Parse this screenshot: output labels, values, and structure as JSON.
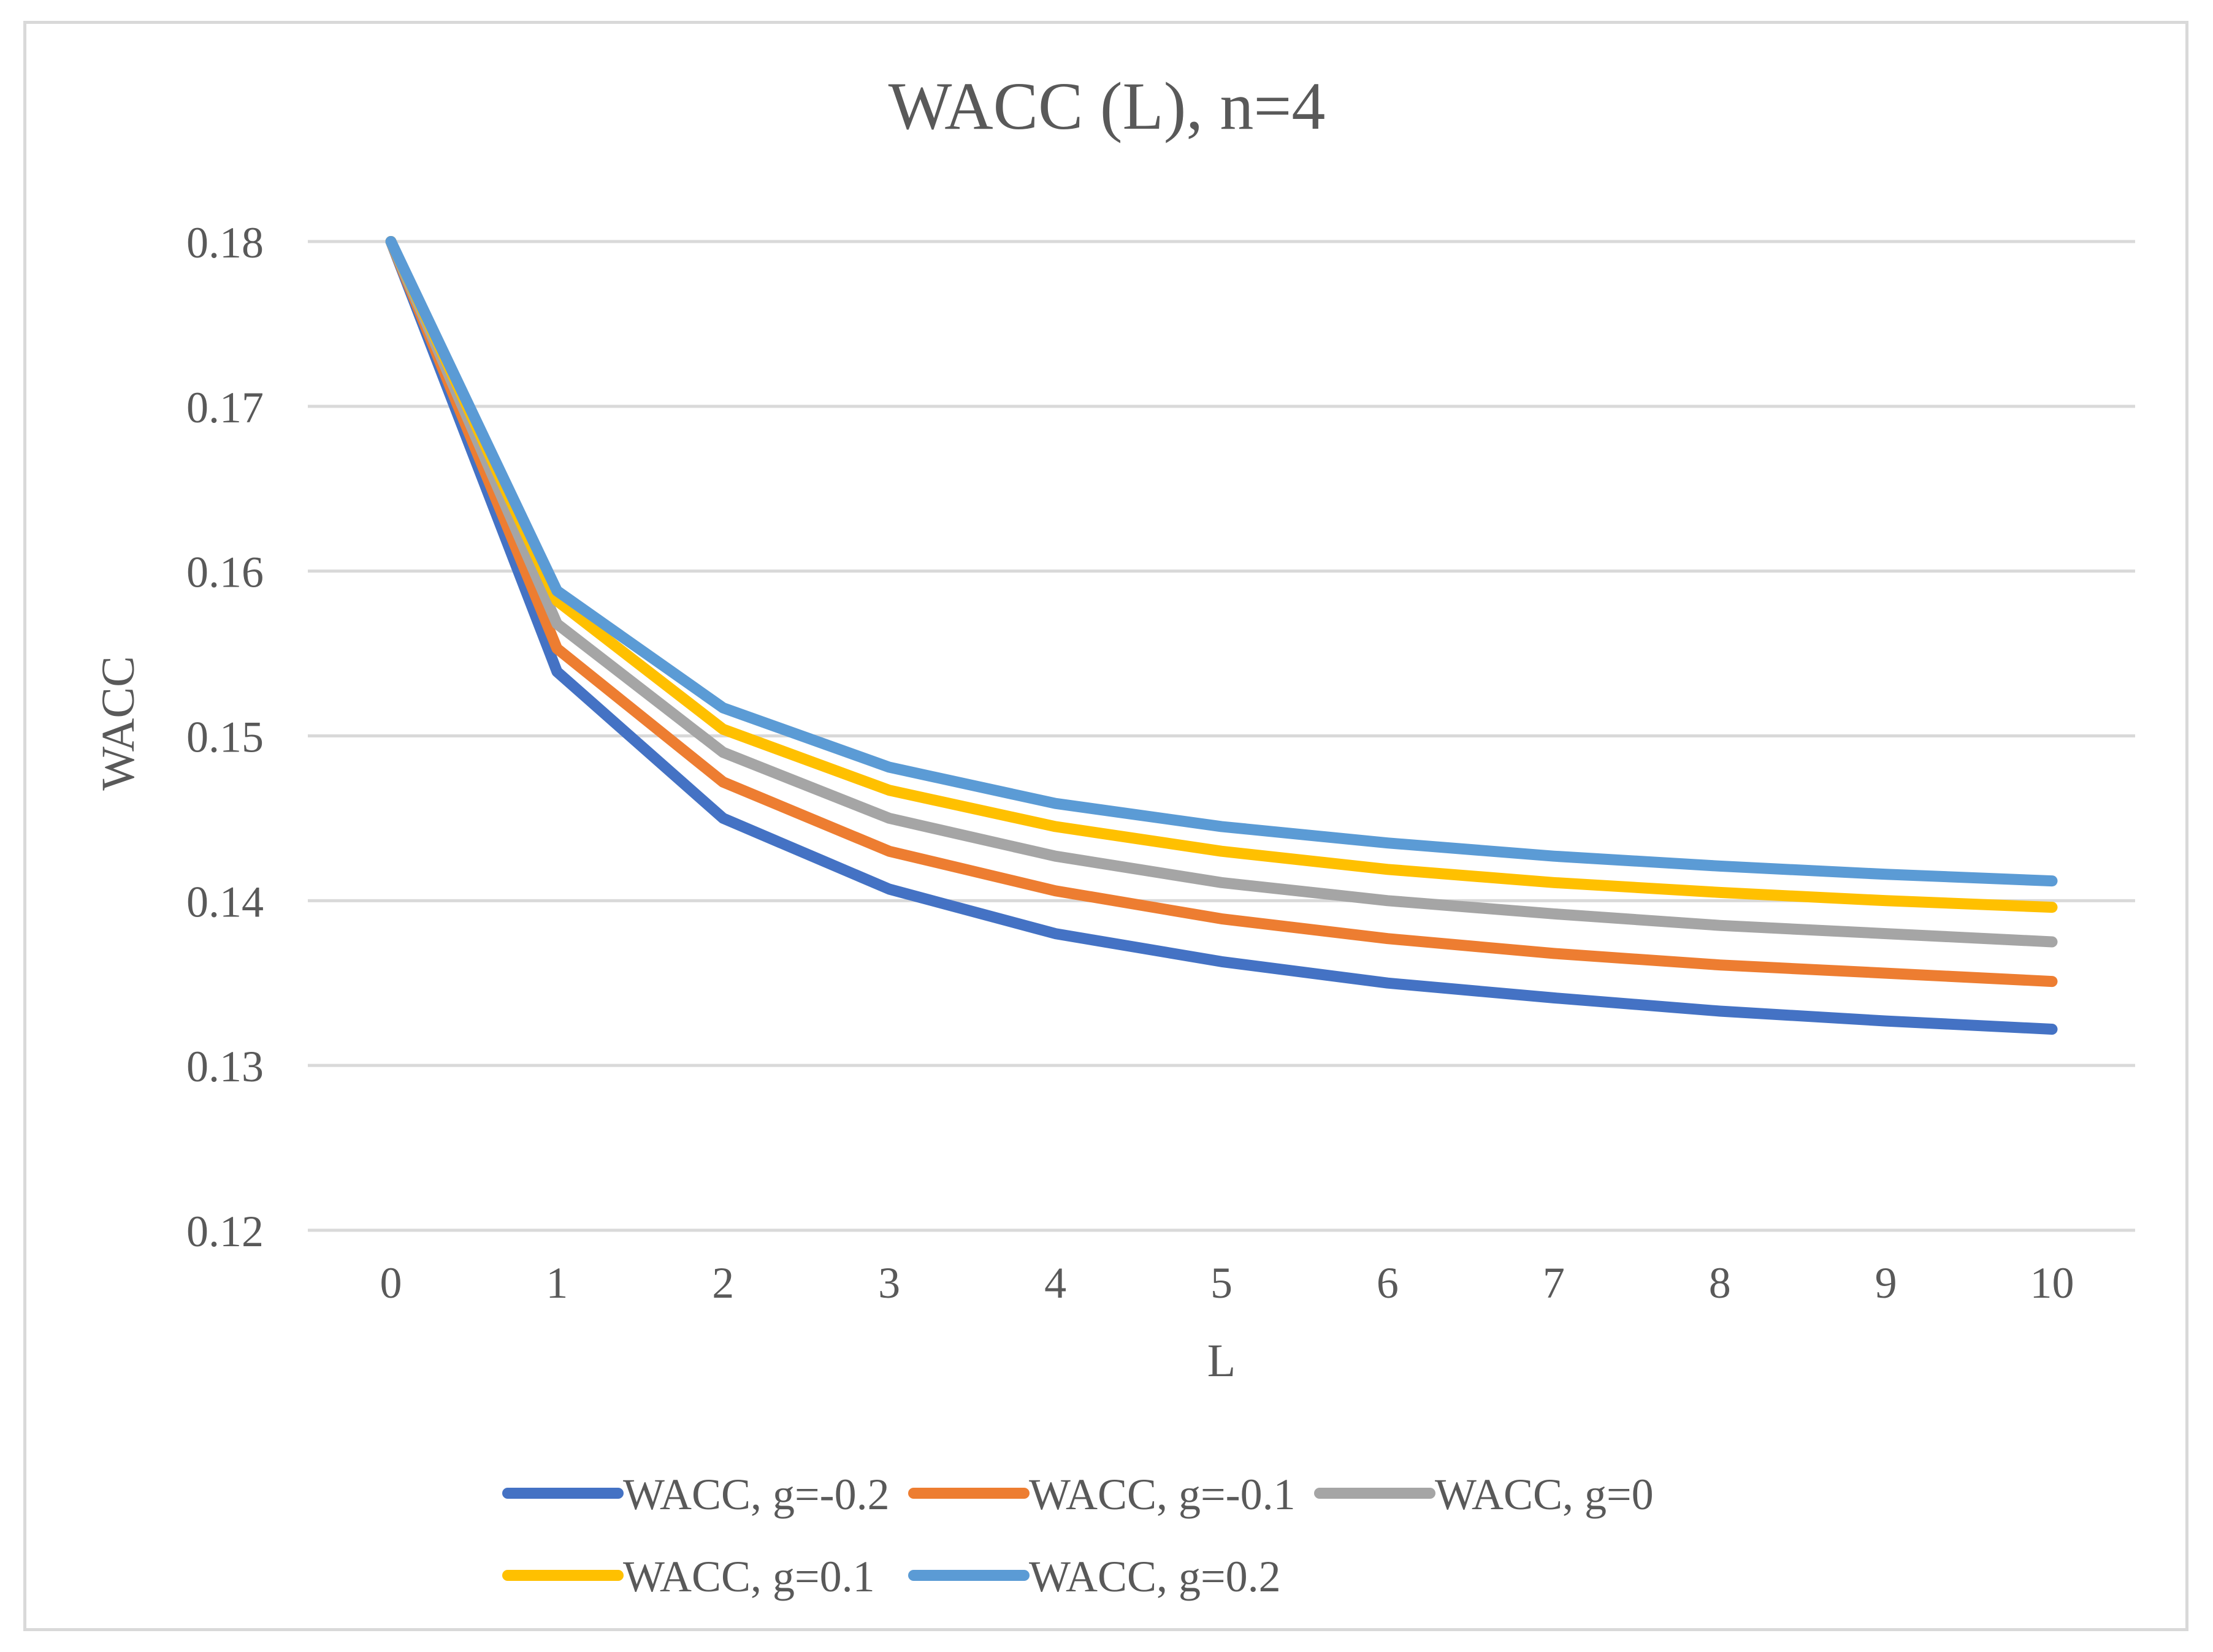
{
  "chart_data": {
    "type": "line",
    "title": "WACC (L), n=4",
    "xlabel": "L",
    "ylabel": "WACC",
    "categories": [
      "0",
      "1",
      "2",
      "3",
      "4",
      "5",
      "6",
      "7",
      "8",
      "9",
      "10"
    ],
    "ylim": [
      0.12,
      0.18
    ],
    "yticks": [
      0.12,
      0.13,
      0.14,
      0.15,
      0.16,
      0.17,
      0.18
    ],
    "ytick_labels": [
      "0.12",
      "0.13",
      "0.14",
      "0.15",
      "0.16",
      "0.17",
      "0.18"
    ],
    "grid": true,
    "legend_position": "bottom",
    "series": [
      {
        "name": "WACC, g=-0.2",
        "color": "#4472c4",
        "values": [
          0.18,
          0.1539,
          0.145,
          0.1407,
          0.138,
          0.1363,
          0.135,
          0.1341,
          0.1333,
          0.1327,
          0.1322
        ]
      },
      {
        "name": "WACC, g=-0.1",
        "color": "#ed7d31",
        "values": [
          0.18,
          0.1553,
          0.1472,
          0.143,
          0.1406,
          0.1389,
          0.1377,
          0.1368,
          0.1361,
          0.1356,
          0.1351
        ]
      },
      {
        "name": "WACC, g=0",
        "color": "#a5a5a5",
        "values": [
          0.18,
          0.1568,
          0.149,
          0.145,
          0.1427,
          0.1411,
          0.14,
          0.1392,
          0.1385,
          0.138,
          0.1375
        ]
      },
      {
        "name": "WACC, g=0.1",
        "color": "#ffc000",
        "values": [
          0.18,
          0.1582,
          0.1504,
          0.1467,
          0.1445,
          0.143,
          0.1419,
          0.1411,
          0.1405,
          0.14,
          0.1396
        ]
      },
      {
        "name": "WACC, g=0.2",
        "color": "#5b9bd5",
        "values": [
          0.18,
          0.1588,
          0.1517,
          0.1481,
          0.1459,
          0.1445,
          0.1435,
          0.1427,
          0.1421,
          0.1416,
          0.1412
        ]
      }
    ]
  }
}
